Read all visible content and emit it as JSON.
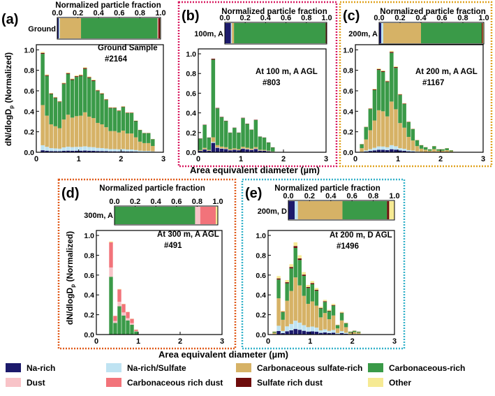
{
  "colors": {
    "Na-rich": "#1c1a6b",
    "Na-rich/Sulfate": "#bfe3f2",
    "Carbonaceous sulfate-rich": "#d6b266",
    "Carbonaceous-rich": "#3a9a48",
    "Dust": "#f8c3c8",
    "Carbonaceous rich dust": "#f2737a",
    "Sulfate rich dust": "#6e0c0c",
    "Other": "#f6ea94"
  },
  "legend": {
    "items": [
      "Na-rich",
      "Na-rich/Sulfate",
      "Carbonaceous sulfate-rich",
      "Carbonaceous-rich",
      "Dust",
      "Carbonaceous rich dust",
      "Sulfate rich dust",
      "Other"
    ]
  },
  "common": {
    "fraction_title": "Normalized particle fraction",
    "fraction_ticks": [
      "0.0",
      "0.2",
      "0.4",
      "0.6",
      "0.8",
      "1.0"
    ],
    "xlabel": "Area equivalent diameter (µm)",
    "ylabel_main": "dN/dlogD",
    "ylabel_sub": "p",
    "ylabel_tail": " (Normalized)"
  },
  "chart_data": [
    {
      "panel": "(a)",
      "type": "bar",
      "stacked": true,
      "row_label": "Ground",
      "annotation": [
        "Ground Sample",
        "#2164"
      ],
      "xlim": [
        0,
        3
      ],
      "ylim": [
        0,
        1.05
      ],
      "xticks": [
        "0",
        "1",
        "2",
        "3"
      ],
      "yticks": [
        "0.0",
        "0.2",
        "0.4",
        "0.6",
        "0.8",
        "1.0"
      ],
      "fraction": [
        0.015,
        0.01,
        0.205,
        0.74,
        0.005,
        0.005,
        0.015,
        0.005
      ],
      "bin_centers": [
        0.15,
        0.25,
        0.35,
        0.45,
        0.55,
        0.65,
        0.75,
        0.85,
        0.95,
        1.05,
        1.15,
        1.25,
        1.35,
        1.45,
        1.55,
        1.65,
        1.75,
        1.85,
        1.95,
        2.05,
        2.15,
        2.25,
        2.35,
        2.45,
        2.55,
        2.65,
        2.75
      ],
      "totals": [
        0.98,
        0.76,
        0.58,
        0.54,
        0.5,
        0.68,
        0.78,
        0.72,
        0.75,
        0.76,
        0.83,
        0.74,
        0.71,
        0.61,
        0.58,
        0.52,
        0.44,
        0.44,
        0.41,
        0.45,
        0.39,
        0.39,
        0.31,
        0.22,
        0.19,
        0.19,
        0.13
      ],
      "shares": [
        0.02,
        0.05,
        0.4,
        0.51,
        0.0,
        0.0,
        0.01,
        0.01
      ]
    },
    {
      "panel": "(b)",
      "type": "bar",
      "stacked": true,
      "row_label": "100m, A",
      "annotation": [
        "At 100 m, A AGL",
        "#803"
      ],
      "xlim": [
        0,
        3
      ],
      "ylim": [
        0,
        1.05
      ],
      "xticks": [
        "0",
        "1",
        "2",
        "3"
      ],
      "yticks": [
        "0.0",
        "0.2",
        "0.4",
        "0.6",
        "0.8",
        "1.0"
      ],
      "fraction": [
        0.06,
        0.01,
        0.02,
        0.9,
        0.0,
        0.0,
        0.01,
        0.0
      ],
      "bin_centers": [
        0.05,
        0.15,
        0.25,
        0.35,
        0.45,
        0.55,
        0.65,
        0.75,
        0.85,
        0.95,
        1.05,
        1.15,
        1.25,
        1.35,
        1.45,
        1.55,
        1.65,
        1.75
      ],
      "totals": [
        0.14,
        0.28,
        0.15,
        0.95,
        0.45,
        0.36,
        0.32,
        0.2,
        0.25,
        0.2,
        0.35,
        0.29,
        0.23,
        0.33,
        0.16,
        0.15,
        0.1,
        0.05
      ],
      "shares": [
        0.1,
        0.01,
        0.05,
        0.83,
        0.0,
        0.0,
        0.01,
        0.0
      ]
    },
    {
      "panel": "(c)",
      "type": "bar",
      "stacked": true,
      "row_label": "200m, A",
      "annotation": [
        "At 200 m, A AGL",
        "#1167"
      ],
      "xlim": [
        0,
        3
      ],
      "ylim": [
        0,
        1.05
      ],
      "xticks": [
        "0",
        "1",
        "2",
        "3"
      ],
      "yticks": [
        "0.0",
        "0.2",
        "0.4",
        "0.6",
        "0.8",
        "1.0"
      ],
      "fraction": [
        0.02,
        0.02,
        0.36,
        0.58,
        0.0,
        0.0,
        0.01,
        0.01
      ],
      "bin_centers": [
        0.15,
        0.25,
        0.35,
        0.45,
        0.55,
        0.65,
        0.75,
        0.85,
        0.95,
        1.05,
        1.15,
        1.25,
        1.35,
        1.45,
        1.55,
        1.65,
        1.75,
        1.85,
        1.95,
        2.05,
        2.15,
        2.25
      ],
      "totals": [
        0.08,
        0.25,
        0.43,
        0.62,
        0.82,
        0.8,
        0.7,
        0.99,
        0.84,
        0.57,
        0.48,
        0.3,
        0.23,
        0.12,
        0.07,
        0.05,
        0.03,
        0.06,
        0.03,
        0.03,
        0.04,
        0.02
      ],
      "shares": [
        0.03,
        0.04,
        0.43,
        0.48,
        0.0,
        0.0,
        0.01,
        0.01
      ]
    },
    {
      "panel": "(d)",
      "type": "bar",
      "stacked": true,
      "row_label": "300m, A",
      "annotation": [
        "At 300 m, A AGL",
        "#491"
      ],
      "xlim": [
        0,
        3
      ],
      "ylim": [
        0,
        1.05
      ],
      "xticks": [
        "0",
        "1",
        "2",
        "3"
      ],
      "yticks": [
        "0.0",
        "0.2",
        "0.4",
        "0.6",
        "0.8",
        "1.0"
      ],
      "fraction": [
        0.0,
        0.0,
        0.0,
        0.78,
        0.05,
        0.15,
        0.0,
        0.02
      ],
      "bin_centers": [
        0.35,
        0.45,
        0.55,
        0.65,
        0.75,
        0.85,
        0.95
      ],
      "totals": [
        0.94,
        0.19,
        0.46,
        0.31,
        0.23,
        0.16,
        0.05
      ],
      "shares": [
        0.0,
        0.0,
        0.0,
        0.62,
        0.1,
        0.27,
        0.0,
        0.01
      ]
    },
    {
      "panel": "(e)",
      "type": "bar",
      "stacked": true,
      "row_label": "200m, D",
      "annotation": [
        "At 200 m, D AGL",
        "#1496"
      ],
      "xlim": [
        0,
        3
      ],
      "ylim": [
        0,
        1.05
      ],
      "xticks": [
        "0",
        "1",
        "2",
        "3"
      ],
      "yticks": [
        "0.0",
        "0.2",
        "0.4",
        "0.6",
        "0.8",
        "1.0"
      ],
      "fraction": [
        0.06,
        0.03,
        0.42,
        0.42,
        0.0,
        0.0,
        0.02,
        0.05
      ],
      "bin_centers": [
        0.15,
        0.25,
        0.35,
        0.45,
        0.55,
        0.65,
        0.75,
        0.85,
        0.95,
        1.05,
        1.15,
        1.25,
        1.35,
        1.45,
        1.55,
        1.65,
        1.75,
        1.85,
        1.95,
        2.05,
        2.15
      ],
      "totals": [
        0.03,
        0.59,
        0.24,
        0.55,
        0.71,
        0.93,
        0.8,
        0.63,
        0.5,
        0.54,
        0.47,
        0.28,
        0.35,
        0.25,
        0.31,
        0.1,
        0.23,
        0.12,
        0.03,
        0.04,
        0.03
      ],
      "shares": [
        0.06,
        0.09,
        0.47,
        0.32,
        0.0,
        0.0,
        0.02,
        0.04
      ]
    }
  ]
}
